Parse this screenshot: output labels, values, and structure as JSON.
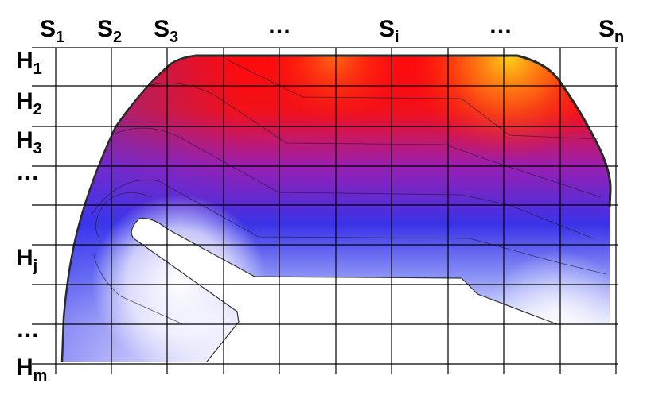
{
  "colors": {
    "hot": "#ffd21a",
    "warm": "#ff1010",
    "mid": "#7a1fb8",
    "cool": "#2f3cf0",
    "cold": "#ffffff",
    "grid": "#000000",
    "outline": "#222222"
  },
  "column_labels": [
    {
      "base": "S",
      "sub": "1"
    },
    {
      "base": "S",
      "sub": "2"
    },
    {
      "base": "S",
      "sub": "3"
    },
    {
      "base": "…",
      "sub": ""
    },
    {
      "base": "S",
      "sub": "i"
    },
    {
      "base": "…",
      "sub": ""
    },
    {
      "base": "S",
      "sub": "n"
    }
  ],
  "row_labels": [
    {
      "base": "H",
      "sub": "1"
    },
    {
      "base": "H",
      "sub": "2"
    },
    {
      "base": "H",
      "sub": "3"
    },
    {
      "base": "…",
      "sub": ""
    },
    {
      "base": "H",
      "sub": "j"
    },
    {
      "base": "…",
      "sub": ""
    },
    {
      "base": "H",
      "sub": "m"
    }
  ]
}
